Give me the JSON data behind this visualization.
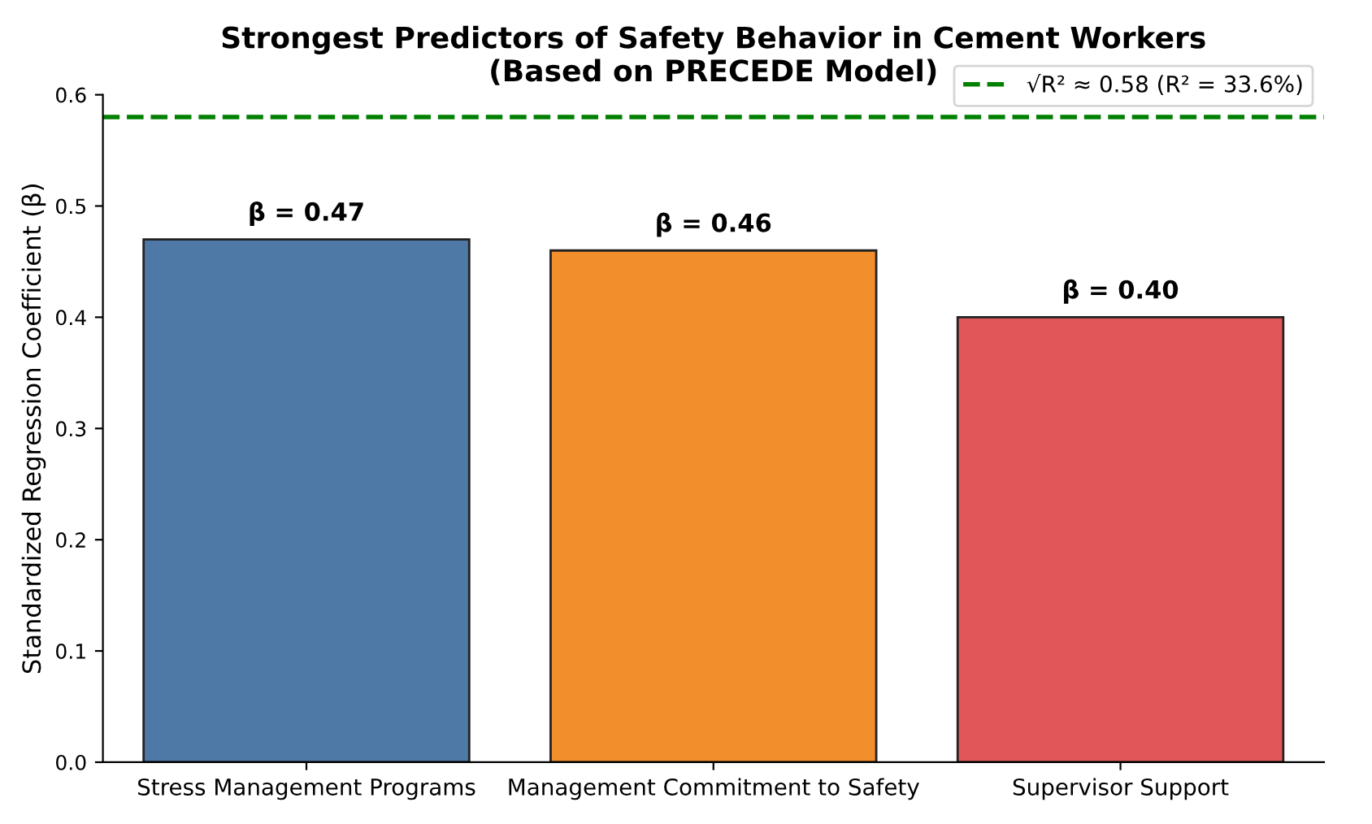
{
  "chart_data": {
    "type": "bar",
    "title": "Strongest Predictors of Safety Behavior in Cement Workers\n(Based on PRECEDE Model)",
    "ylabel": "Standardized Regression Coefficient (β)",
    "categories": [
      "Stress Management Programs",
      "Management Commitment to Safety",
      "Supervisor Support"
    ],
    "values": [
      0.47,
      0.46,
      0.4
    ],
    "colors": [
      "#4e79a7",
      "#f28e2b",
      "#e15759"
    ],
    "value_labels": [
      "β = 0.47",
      "β = 0.46",
      "β = 0.40"
    ],
    "ylim": [
      0,
      0.6
    ],
    "yticks": [
      {
        "value": 0,
        "label": "0.0"
      },
      0.1,
      0.2,
      0.3,
      0.4,
      0.5,
      0.6
    ],
    "ref_lines": [
      {
        "axis": "y",
        "value": 0.58,
        "label": "√R² ≈ 0.58 (R² = 33.6%)",
        "color": "#008000",
        "line_style": "dashed"
      }
    ],
    "legend": "top right",
    "grid": false
  }
}
